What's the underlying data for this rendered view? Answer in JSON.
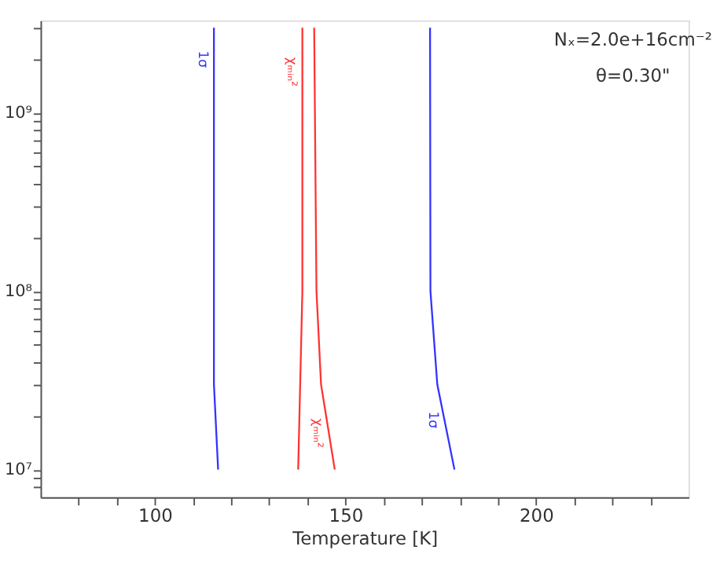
{
  "chart_data": {
    "type": "line",
    "xlabel": "Temperature [K]",
    "log": "y",
    "grid": false,
    "legend": false,
    "marker": "none",
    "line_style": "solid",
    "xlim": [
      70,
      240
    ],
    "xticks": [
      {
        "value": 80,
        "label": null
      },
      {
        "value": 90,
        "label": null
      },
      100,
      {
        "value": 110,
        "label": null
      },
      {
        "value": 120,
        "label": null
      },
      {
        "value": 130,
        "label": null
      },
      {
        "value": 140,
        "label": null
      },
      150,
      {
        "value": 160,
        "label": null
      },
      {
        "value": 170,
        "label": null
      },
      {
        "value": 180,
        "label": null
      },
      {
        "value": 190,
        "label": null
      },
      200,
      {
        "value": 210,
        "label": null
      },
      {
        "value": 220,
        "label": null
      },
      {
        "value": 230,
        "label": null
      }
    ],
    "ylim": [
      7000000,
      3300000000
    ],
    "yticks": [
      {
        "value": 8000000,
        "label": null
      },
      {
        "value": 9000000,
        "label": null
      },
      {
        "value": 10000000,
        "label": "10⁷"
      },
      {
        "value": 20000000,
        "label": null
      },
      {
        "value": 30000000,
        "label": null
      },
      {
        "value": 40000000,
        "label": null
      },
      {
        "value": 50000000,
        "label": null
      },
      {
        "value": 60000000,
        "label": null
      },
      {
        "value": 70000000,
        "label": null
      },
      {
        "value": 80000000,
        "label": null
      },
      {
        "value": 90000000,
        "label": null
      },
      {
        "value": 100000000,
        "label": "10⁸"
      },
      {
        "value": 200000000,
        "label": null
      },
      {
        "value": 300000000,
        "label": null
      },
      {
        "value": 400000000,
        "label": null
      },
      {
        "value": 500000000,
        "label": null
      },
      {
        "value": 600000000,
        "label": null
      },
      {
        "value": 700000000,
        "label": null
      },
      {
        "value": 800000000,
        "label": null
      },
      {
        "value": 900000000,
        "label": null
      },
      {
        "value": 1000000000,
        "label": "10⁹"
      },
      {
        "value": 2000000000,
        "label": null
      },
      {
        "value": 3000000000,
        "label": null
      }
    ],
    "series": [
      {
        "color": "#3333ff",
        "x": [
          115.5,
          115.5,
          116.6
        ],
        "values": [
          3000000000,
          30000000,
          10000000
        ]
      },
      {
        "color": "#ff3333",
        "x": [
          138.7,
          138.7,
          137.6
        ],
        "values": [
          3000000000,
          100000000,
          10000000
        ]
      },
      {
        "color": "#ff3333",
        "x": [
          141.8,
          142.4,
          143.6,
          147.2
        ],
        "values": [
          3000000000,
          100000000,
          30000000,
          10000000
        ]
      },
      {
        "color": "#3333ff",
        "x": [
          172.2,
          172.3,
          174.1,
          178.6
        ],
        "values": [
          3000000000,
          100000000,
          30000000,
          10000000
        ]
      }
    ],
    "annotations": [
      "Nₓ=2.0e+16cm⁻²",
      "θ=0.30\"",
      {
        "text": "1σ",
        "x": 115.5,
        "y": 2000000000
      },
      {
        "text": "χₘᵢₙ²",
        "x": 138.7,
        "y": 1700000000
      },
      {
        "text": "χₘᵢₙ²",
        "x": 145.5,
        "y": 16000000
      },
      {
        "text": "1σ",
        "x": 176.0,
        "y": 19000000
      }
    ]
  }
}
